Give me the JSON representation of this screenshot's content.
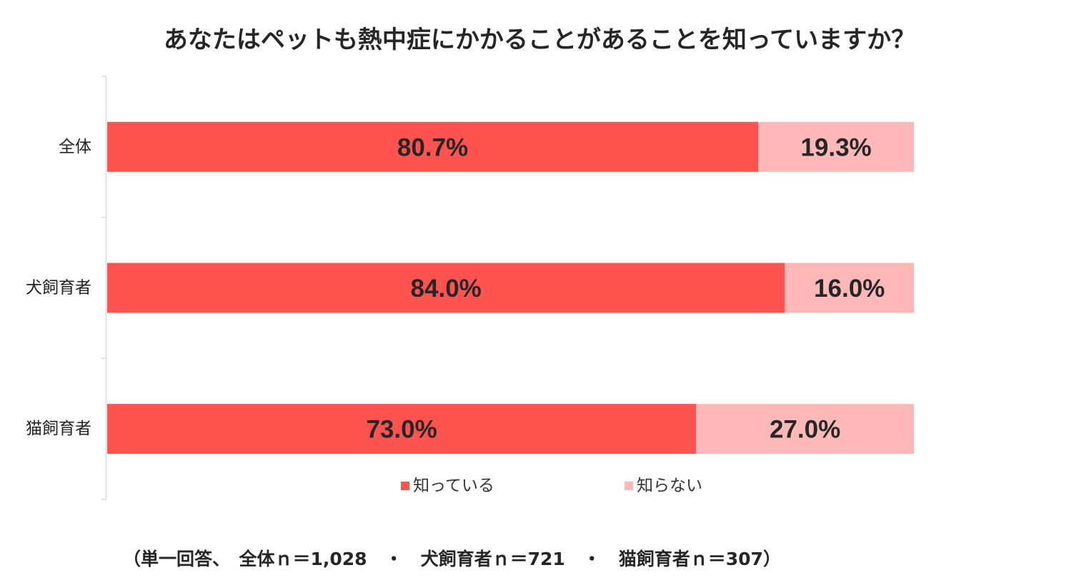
{
  "chart_data": {
    "type": "bar",
    "orientation": "horizontal",
    "stacked": true,
    "title": "あなたはペットも熱中症にかかることがあることを知っていますか？",
    "categories": [
      "全体",
      "犬飼育者",
      "猫飼育者"
    ],
    "series": [
      {
        "name": "知っている",
        "values": [
          80.7,
          84.0,
          73.0
        ],
        "labels": [
          "80.7%",
          "84.0%",
          "73.0%"
        ],
        "color": "#FF5350"
      },
      {
        "name": "知らない",
        "values": [
          19.3,
          16.0,
          27.0
        ],
        "labels": [
          "19.3%",
          "16.0%",
          "27.0%"
        ],
        "color": "#FFB8B8"
      }
    ],
    "xlim": [
      0,
      100
    ],
    "grid": false,
    "legend": "bottom",
    "footnote": "（単一回答、　全体ｎ＝1,028　・　犬飼育者ｎ＝721　・　猫飼育者ｎ＝307）"
  }
}
